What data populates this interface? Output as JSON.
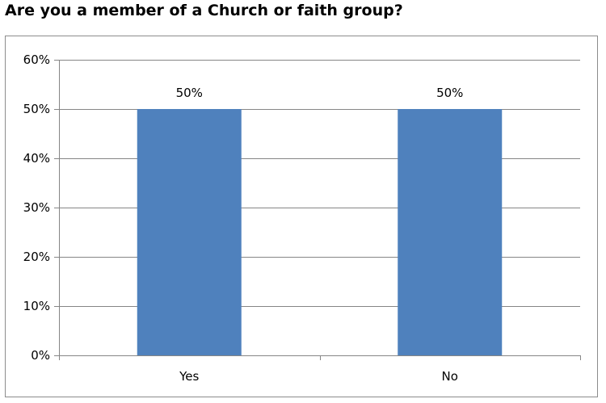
{
  "title": "Are you a member of a Church or faith group?",
  "chart_data": {
    "type": "bar",
    "title": "",
    "xlabel": "",
    "ylabel": "",
    "categories": [
      "Yes",
      "No"
    ],
    "values": [
      50,
      50
    ],
    "data_labels": [
      "50%",
      "50%"
    ],
    "ylim": [
      0,
      60
    ],
    "y_ticks": [
      0,
      10,
      20,
      30,
      40,
      50,
      60
    ],
    "y_tick_labels": [
      "0%",
      "10%",
      "20%",
      "30%",
      "40%",
      "50%",
      "60%"
    ],
    "grid": true,
    "legend": "none",
    "bar_color": "#4f81bd",
    "grid_color": "#868686"
  }
}
